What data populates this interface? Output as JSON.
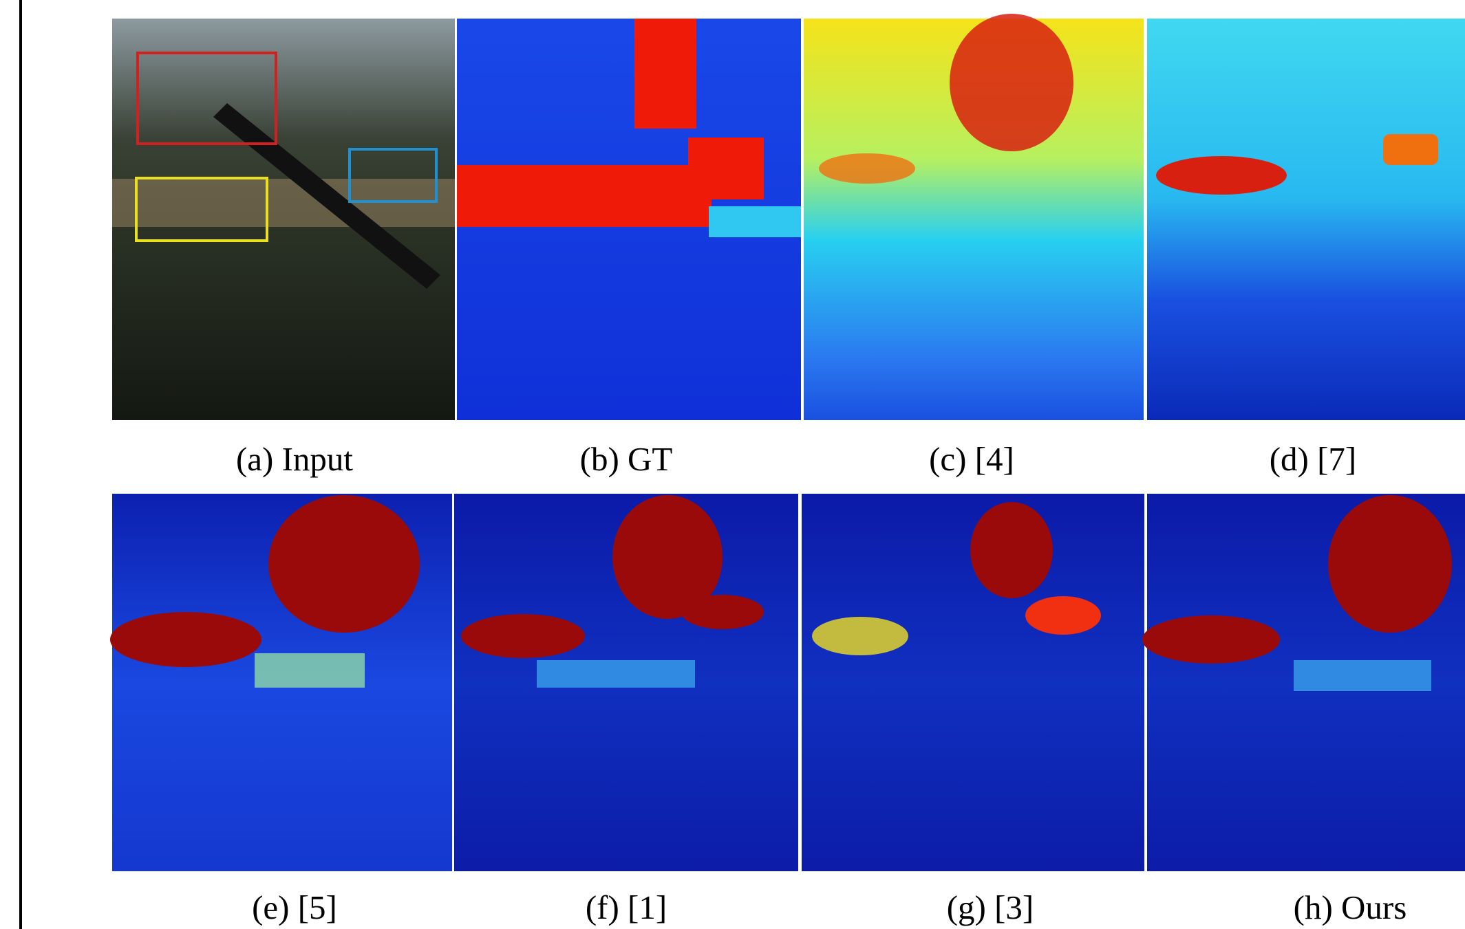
{
  "captions": [
    "(a) Input",
    "(b) GT",
    "(c) [4]",
    "(d) [7]",
    "(e) [5]",
    "(f) [1]",
    "(g) [3]",
    "(h) Ours"
  ]
}
